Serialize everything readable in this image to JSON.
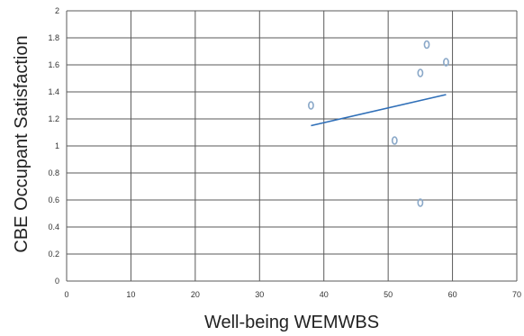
{
  "chart_data": {
    "type": "scatter",
    "title": "",
    "xlabel": "Well-being WEMWBS",
    "ylabel": "CBE Occupant Satisfaction",
    "xlim": [
      0,
      70
    ],
    "ylim": [
      0,
      2
    ],
    "x_ticks": [
      0,
      10,
      20,
      30,
      40,
      50,
      60,
      70
    ],
    "y_ticks": [
      0,
      0.2,
      0.4,
      0.6,
      0.8,
      1,
      1.2,
      1.4,
      1.6,
      1.8,
      2
    ],
    "x_tick_labels": [
      "0",
      "10",
      "20",
      "30",
      "40",
      "50",
      "60",
      "70"
    ],
    "y_tick_labels": [
      "0",
      "0.2",
      "0.4",
      "0.6",
      "0.8",
      "1",
      "1.2",
      "1.4",
      "1.6",
      "1.8",
      "2"
    ],
    "grid": true,
    "legend": "none",
    "series": [
      {
        "points": [
          {
            "x": 38,
            "y": 1.3
          },
          {
            "x": 51,
            "y": 1.04
          },
          {
            "x": 55,
            "y": 0.58
          },
          {
            "x": 55,
            "y": 1.54
          },
          {
            "x": 56,
            "y": 1.75
          },
          {
            "x": 59,
            "y": 1.62
          }
        ],
        "marker_color": "#8aa8c8"
      }
    ],
    "trendline": {
      "type": "linear",
      "x_start": 38,
      "y_start": 1.15,
      "x_end": 59,
      "y_end": 1.38,
      "color": "#2f6fb8"
    }
  }
}
